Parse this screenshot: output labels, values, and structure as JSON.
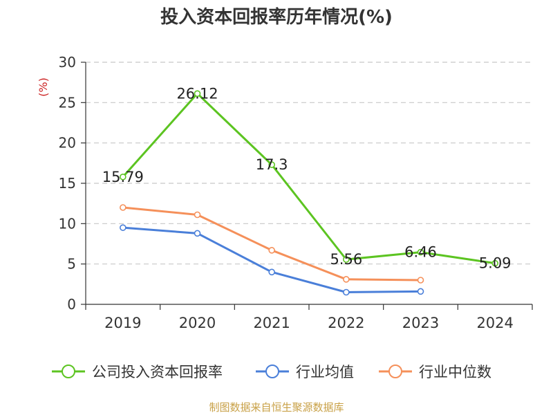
{
  "chart_data": {
    "type": "line",
    "title": "投入资本回报率历年情况(%)",
    "ylabel": "(%)",
    "categories": [
      "2019",
      "2020",
      "2021",
      "2022",
      "2023",
      "2024"
    ],
    "ylim": [
      0,
      30
    ],
    "yticks": [
      0,
      5,
      10,
      15,
      20,
      25,
      30
    ],
    "grid": true,
    "legend_position": "bottom",
    "series": [
      {
        "name": "公司投入资本回报率",
        "color": "#5cc421",
        "values": [
          15.79,
          26.12,
          17.3,
          5.56,
          6.46,
          5.09
        ],
        "labels": [
          "15.79",
          "26.12",
          "17.3",
          "5.56",
          "6.46",
          "5.09"
        ]
      },
      {
        "name": "行业均值",
        "color": "#4a7fd9",
        "values": [
          9.5,
          8.8,
          4.0,
          1.5,
          1.6,
          null
        ]
      },
      {
        "name": "行业中位数",
        "color": "#f5905a",
        "values": [
          12.0,
          11.1,
          6.7,
          3.1,
          3.0,
          null
        ]
      }
    ]
  },
  "source_note": "制图数据来自恒生聚源数据库"
}
